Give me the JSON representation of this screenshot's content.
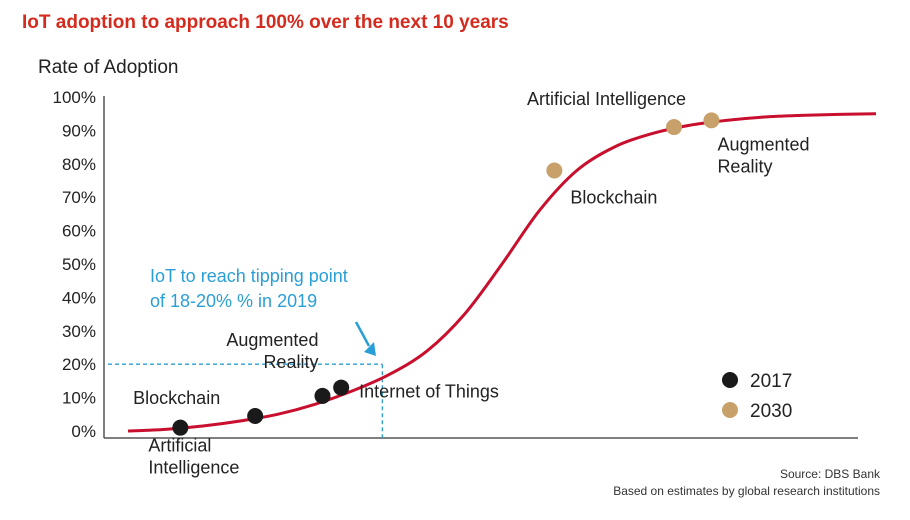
{
  "title": "IoT adoption to approach 100% over the next 10 years",
  "source": {
    "line1": "Source: DBS Bank",
    "line2": "Based on estimates by global research institutions"
  },
  "colors": {
    "title": "#d52b1e",
    "curve": "#c8102e",
    "series_2017": "#1a1a1a",
    "series_2030": "#c8a16a",
    "annotation": "#2a9fd6",
    "axis": "#555555"
  },
  "chart_data": {
    "type": "line",
    "title": "IoT adoption to approach 100% over the next 10 years",
    "ylabel": "Rate of Adoption",
    "xlabel": "",
    "ylim": [
      0,
      100
    ],
    "yticks": [
      "0%",
      "10%",
      "20%",
      "30%",
      "40%",
      "50%",
      "60%",
      "70%",
      "80%",
      "90%",
      "100%"
    ],
    "grid": false,
    "curve": {
      "description": "S-shaped adoption curve",
      "x": [
        0,
        5,
        10,
        15,
        20,
        25,
        30,
        35,
        40,
        45,
        50,
        55,
        60,
        65,
        70,
        75,
        80,
        85,
        90,
        95,
        100
      ],
      "y": [
        0,
        0.5,
        1.5,
        3,
        5,
        8,
        12,
        17,
        24,
        35,
        50,
        66,
        78,
        85,
        89,
        91.5,
        93,
        94,
        94.5,
        94.8,
        95
      ]
    },
    "series": [
      {
        "name": "2017",
        "points": [
          {
            "label": "Artificial Intelligence",
            "x": 7,
            "y": 1
          },
          {
            "label": "Blockchain",
            "x": 17,
            "y": 4.5
          },
          {
            "label": "Augmented Reality",
            "x": 26,
            "y": 10.5
          },
          {
            "label": "Internet of Things",
            "x": 28.5,
            "y": 13
          }
        ]
      },
      {
        "name": "2030",
        "points": [
          {
            "label": "Blockchain",
            "x": 57,
            "y": 78
          },
          {
            "label": "Artificial Intelligence",
            "x": 73,
            "y": 91
          },
          {
            "label": "Augmented Reality",
            "x": 78,
            "y": 93
          }
        ]
      }
    ],
    "annotation": {
      "text_line1": "IoT to reach tipping point",
      "text_line2": "of 18-20% % in 2019",
      "x": 34,
      "y": 20
    },
    "legend": {
      "placement": "bottom-right",
      "items": [
        "2017",
        "2030"
      ]
    }
  }
}
